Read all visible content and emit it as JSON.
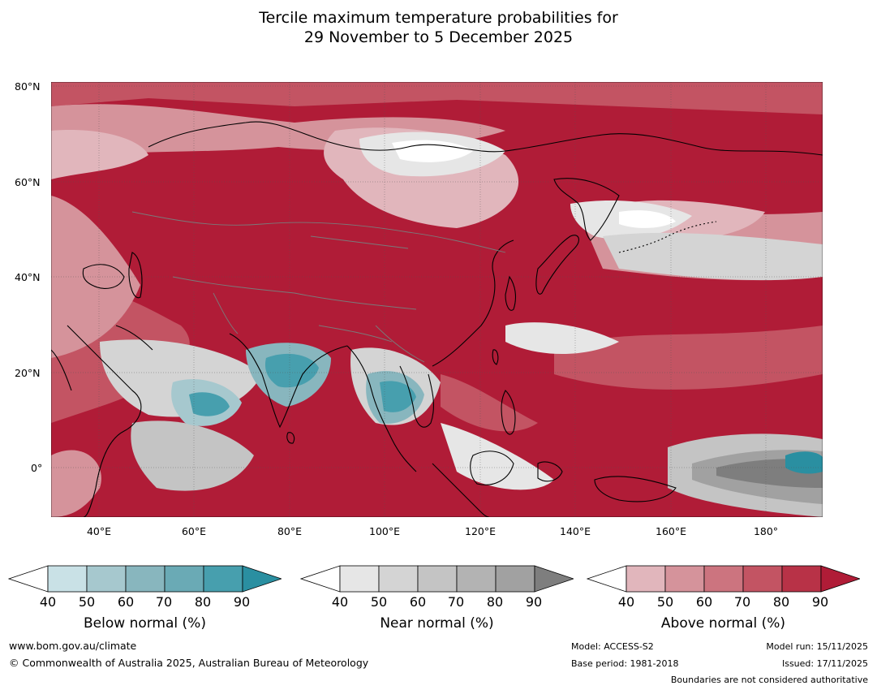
{
  "title": {
    "line1": "Tercile maximum temperature probabilities for",
    "line2": "29 November to 5 December 2025"
  },
  "map": {
    "lat_labels": [
      "80°N",
      "60°N",
      "40°N",
      "20°N",
      "0°"
    ],
    "lon_labels": [
      "40°E",
      "60°E",
      "80°E",
      "100°E",
      "120°E",
      "140°E",
      "160°E",
      "180°"
    ],
    "lon_range": [
      30,
      192
    ],
    "lat_range": [
      -10,
      80
    ]
  },
  "colorbars": [
    {
      "name": "below",
      "label": "Below normal (%)",
      "ticks": [
        "40",
        "50",
        "60",
        "70",
        "80",
        "90"
      ],
      "colors": [
        "#c9e1e6",
        "#a6c8ce",
        "#88b6be",
        "#6aaab5",
        "#479fae",
        "#2a8fa1"
      ]
    },
    {
      "name": "near",
      "label": "Near normal (%)",
      "ticks": [
        "40",
        "50",
        "60",
        "70",
        "80",
        "90"
      ],
      "colors": [
        "#e6e6e6",
        "#d4d4d4",
        "#c4c4c4",
        "#b3b3b3",
        "#a1a1a1",
        "#7e7e7e"
      ]
    },
    {
      "name": "above",
      "label": "Above normal (%)",
      "ticks": [
        "40",
        "50",
        "60",
        "70",
        "80",
        "90"
      ],
      "colors": [
        "#e1b6bc",
        "#d5939b",
        "#cc747f",
        "#c35463",
        "#b83247",
        "#b01c37"
      ]
    }
  ],
  "footer": {
    "website": "www.bom.gov.au/climate",
    "copyright": "© Commonwealth of Australia 2025, Australian Bureau of Meteorology",
    "model": "Model: ACCESS-S2",
    "base_period": "Base period: 1981-2018",
    "model_run": "Model run: 15/11/2025",
    "issued": "Issued: 17/11/2025",
    "disclaimer": "Boundaries are not considered authoritative"
  }
}
